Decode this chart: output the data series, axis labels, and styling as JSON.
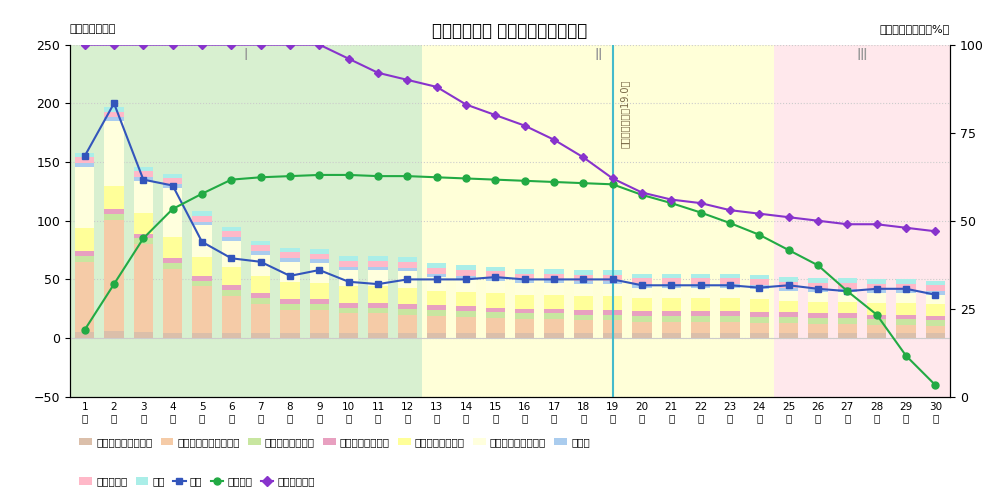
{
  "title": "入院後日数別 損益推移（平均値）",
  "ylabel_left": "【金額：千円】",
  "ylabel_right": "【該当患者割合：%】",
  "ylim_left": [
    -50,
    250
  ],
  "ylim_right": [
    0,
    100
  ],
  "vertical_line_day": 19,
  "vertical_line_label": "平均在院日数：19.0日",
  "stack_医薬品費": [
    5,
    6,
    5,
    4,
    4,
    4,
    4,
    4,
    4,
    4,
    4,
    4,
    4,
    4,
    4,
    4,
    4,
    4,
    4,
    4,
    4,
    4,
    4,
    4,
    4,
    4,
    4,
    4,
    4,
    4
  ],
  "stack_診療材料費": [
    60,
    95,
    75,
    55,
    40,
    32,
    25,
    20,
    20,
    17,
    17,
    16,
    15,
    14,
    13,
    12,
    12,
    11,
    11,
    10,
    10,
    10,
    10,
    9,
    9,
    8,
    8,
    7,
    7,
    6
  ],
  "stack_食材費": [
    5,
    5,
    5,
    5,
    5,
    5,
    5,
    5,
    5,
    5,
    5,
    5,
    5,
    5,
    5,
    5,
    5,
    5,
    5,
    5,
    5,
    5,
    5,
    5,
    5,
    5,
    5,
    5,
    5,
    5
  ],
  "stack_その他": [
    4,
    4,
    4,
    4,
    4,
    4,
    4,
    4,
    4,
    4,
    4,
    4,
    4,
    4,
    4,
    4,
    4,
    4,
    4,
    4,
    4,
    4,
    4,
    4,
    4,
    4,
    4,
    4,
    4,
    4
  ],
  "stack_給与費自部門": [
    20,
    20,
    18,
    18,
    16,
    16,
    15,
    15,
    14,
    14,
    14,
    14,
    12,
    12,
    12,
    12,
    12,
    12,
    12,
    11,
    11,
    11,
    11,
    11,
    10,
    10,
    10,
    10,
    10,
    10
  ],
  "stack_給与費院内取引": [
    52,
    55,
    27,
    42,
    27,
    22,
    18,
    17,
    17,
    14,
    14,
    14,
    12,
    11,
    11,
    10,
    10,
    10,
    10,
    9,
    9,
    9,
    9,
    9,
    8,
    8,
    8,
    8,
    8,
    8
  ],
  "stack_委託費": [
    3,
    3,
    3,
    3,
    3,
    3,
    3,
    3,
    3,
    3,
    3,
    3,
    3,
    3,
    3,
    3,
    3,
    3,
    3,
    3,
    3,
    3,
    3,
    3,
    3,
    3,
    3,
    3,
    3,
    3
  ],
  "stack_設備関係費": [
    5,
    5,
    5,
    5,
    5,
    5,
    5,
    5,
    5,
    5,
    5,
    5,
    5,
    5,
    5,
    5,
    5,
    5,
    5,
    5,
    5,
    5,
    5,
    5,
    5,
    5,
    5,
    5,
    5,
    5
  ],
  "stack_経費": [
    4,
    4,
    4,
    4,
    4,
    4,
    4,
    4,
    4,
    4,
    4,
    4,
    4,
    4,
    4,
    4,
    4,
    4,
    4,
    4,
    4,
    4,
    4,
    4,
    4,
    4,
    4,
    4,
    4,
    4
  ],
  "line_収益": [
    155,
    200,
    135,
    130,
    82,
    68,
    65,
    53,
    58,
    48,
    46,
    50,
    50,
    50,
    52,
    50,
    50,
    50,
    50,
    45,
    45,
    45,
    45,
    43,
    45,
    42,
    40,
    42,
    42,
    37
  ],
  "line_累計利益": [
    7,
    46,
    85,
    110,
    123,
    135,
    137,
    138,
    139,
    139,
    138,
    138,
    137,
    136,
    135,
    134,
    133,
    132,
    131,
    122,
    115,
    107,
    98,
    88,
    75,
    62,
    40,
    20,
    -15,
    -40
  ],
  "line_患者割合_pct": [
    100,
    100,
    100,
    100,
    100,
    100,
    100,
    100,
    100,
    96,
    92,
    90,
    88,
    83,
    80,
    77,
    73,
    68,
    62,
    58,
    56,
    55,
    53,
    52,
    51,
    50,
    49,
    49,
    48,
    47
  ],
  "bar_color_医薬品費": "#dbbfaa",
  "bar_color_診療材料費": "#f5cba7",
  "bar_color_食材費": "#c8e6a0",
  "bar_color_その他": "#e8a0c0",
  "bar_color_給与費自部門": "#ffff99",
  "bar_color_給与費院内取引": "#ffffdd",
  "bar_color_委託費": "#aaccee",
  "bar_color_設備関係費": "#ffb8c8",
  "bar_color_経費": "#aaeee8",
  "bg_color_I": "#d8f0d0",
  "bg_color_II": "#ffffd8",
  "bg_color_III": "#ffe8ec",
  "line_color_収益": "#3355bb",
  "line_color_累計利益": "#22aa44",
  "line_color_患者割合": "#8833cc",
  "region_I_label": "Ⅰ",
  "region_II_label": "Ⅱ",
  "region_III_label": "Ⅲ"
}
